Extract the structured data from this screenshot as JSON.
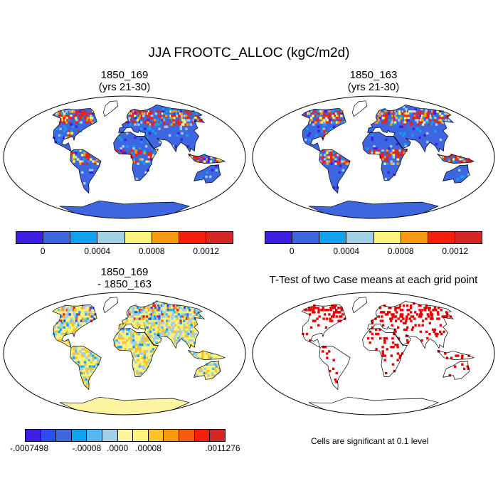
{
  "title": "JJA FROOTC_ALLOC (kgC/m2d)",
  "panels": {
    "top_left": {
      "line1": "1850_169",
      "line2": "(yrs 21-30)"
    },
    "top_right": {
      "line1": "1850_163",
      "line2": "(yrs 21-30)"
    },
    "bottom_left": {
      "line1": "1850_169",
      "line2": "- 1850_163"
    },
    "bottom_right": {
      "line1": "T-Test of two Case means at each grid point"
    }
  },
  "colorbar_top": {
    "colors": [
      "#3c1ee6",
      "#3d66e0",
      "#0fa3ef",
      "#a0cfe6",
      "#fdf27c",
      "#f99a0f",
      "#f51e0f",
      "#d62626"
    ],
    "tick_labels": [
      "0",
      "0.0004",
      "0.0008",
      "0.0012"
    ]
  },
  "colorbar_diff": {
    "colors": [
      "#3c1ee6",
      "#2a4ff0",
      "#3d66e0",
      "#0fa3ef",
      "#52b8ef",
      "#a0cfe6",
      "#fef5a3",
      "#fdf27c",
      "#fbc22a",
      "#f99a0f",
      "#f55a0f",
      "#f51e0f",
      "#d62626"
    ],
    "tick_labels": [
      "-.0007498",
      "-.00008",
      ".0000",
      ".00008",
      ".0011276"
    ]
  },
  "significance_note": "Cells are significant at 0.1 level",
  "colors": {
    "land_high": "#d62626",
    "land_low": "#3d66e0",
    "diff_neutral": "#fdf27c",
    "significant": "#e60000"
  }
}
